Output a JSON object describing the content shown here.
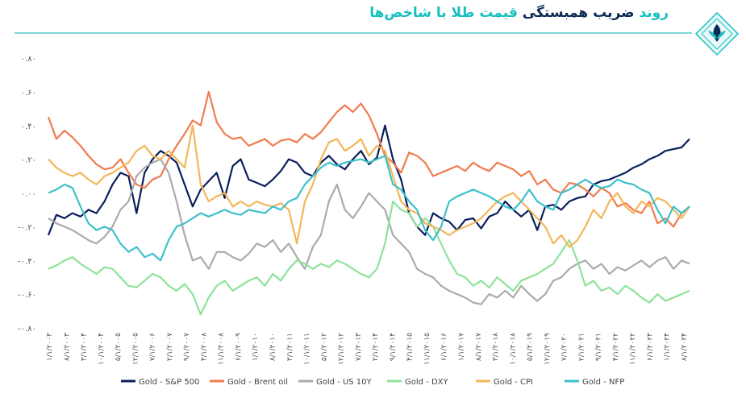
{
  "header": {
    "title_part1": "روند",
    "title_part2": "ضریب همبستگی",
    "title_part3": "قیمت طلا با شاخص‌ها"
  },
  "chart_data": {
    "type": "line",
    "title": "روند ضریب همبستگی قیمت طلا با شاخص‌ها",
    "xlabel": "",
    "ylabel": "",
    "ylim": [
      -0.8,
      0.8
    ],
    "yticks": [
      {
        "value": 0.8,
        "label": "۰.۸۰"
      },
      {
        "value": 0.6,
        "label": "۰.۶۰"
      },
      {
        "value": 0.4,
        "label": "۰.۴۰"
      },
      {
        "value": 0.2,
        "label": "۰.۲۰"
      },
      {
        "value": 0.0,
        "label": "۰.۰۰"
      },
      {
        "value": -0.2,
        "label": "-۰.۲۰"
      },
      {
        "value": -0.4,
        "label": "-۰.۴۰"
      },
      {
        "value": -0.6,
        "label": "-۰.۶۰"
      },
      {
        "value": -0.8,
        "label": "-۰.۸۰"
      }
    ],
    "xticks": [
      "۱/۱/۲۰۰۳",
      "۸/۱/۲۰۰۳",
      "۳/۱/۲۰۰۴",
      "۱۰/۱/۲۰۰۴",
      "۵/۱/۲۰۰۵",
      "۱۲/۱/۲۰۰۵",
      "۷/۱/۲۰۰۶",
      "۲/۱/۲۰۰۷",
      "۹/۱/۲۰۰۷",
      "۴/۱/۲۰۰۸",
      "۱۱/۱/۲۰۰۸",
      "۶/۱/۲۰۰۹",
      "۱/۱/۲۰۱۰",
      "۸/۱/۲۰۱۰",
      "۳/۱/۲۰۱۱",
      "۱۰/۱/۲۰۱۱",
      "۵/۱/۲۰۱۲",
      "۱۲/۱/۲۰۱۲",
      "۷/۱/۲۰۱۳",
      "۲/۱/۲۰۱۴",
      "۹/۱/۲۰۱۴",
      "۴/۱/۲۰۱۵",
      "۱۱/۱/۲۰۱۵",
      "۶/۱/۲۰۱۶",
      "۱/۱/۲۰۱۷",
      "۸/۱/۲۰۱۷",
      "۳/۱/۲۰۱۸",
      "۱۰/۱/۲۰۱۸",
      "۵/۱/۲۰۱۹",
      "۱۲/۱/۲۰۱۹",
      "۷/۱/۲۰۲۰",
      "۲/۱/۲۰۲۱",
      "۹/۱/۲۰۲۱",
      "۴/۱/۲۰۲۲",
      "۱۱/۱/۲۰۲۲",
      "۶/۱/۲۰۲۳",
      "۱/۱/۲۰۲۴",
      "۸/۱/۲۰۲۴"
    ],
    "grid": false,
    "legend_position": "bottom",
    "series": [
      {
        "name": "Gold - S&P 500",
        "color": "#0b1f5c",
        "values": [
          -0.25,
          -0.13,
          -0.15,
          -0.12,
          -0.14,
          -0.1,
          -0.12,
          -0.05,
          0.05,
          0.12,
          0.1,
          -0.12,
          0.12,
          0.2,
          0.25,
          0.22,
          0.18,
          0.05,
          -0.08,
          0.02,
          0.07,
          0.12,
          -0.03,
          0.16,
          0.2,
          0.08,
          0.06,
          0.04,
          0.08,
          0.13,
          0.2,
          0.18,
          0.12,
          0.1,
          0.18,
          0.22,
          0.17,
          0.14,
          0.2,
          0.25,
          0.17,
          0.21,
          0.4,
          0.2,
          0.08,
          -0.12,
          -0.2,
          -0.25,
          -0.12,
          -0.15,
          -0.17,
          -0.22,
          -0.16,
          -0.15,
          -0.21,
          -0.14,
          -0.12,
          -0.05,
          -0.1,
          -0.14,
          -0.1,
          -0.22,
          -0.08,
          -0.07,
          -0.1,
          -0.05,
          -0.03,
          -0.02,
          0.05,
          0.07,
          0.08,
          0.1,
          0.12,
          0.15,
          0.17,
          0.2,
          0.22,
          0.25,
          0.26,
          0.27,
          0.32
        ]
      },
      {
        "name": "Gold - Brent oil",
        "color": "#f07c4f",
        "values": [
          0.45,
          0.32,
          0.37,
          0.33,
          0.28,
          0.22,
          0.17,
          0.14,
          0.15,
          0.2,
          0.12,
          0.05,
          0.03,
          0.08,
          0.1,
          0.2,
          0.28,
          0.35,
          0.43,
          0.4,
          0.6,
          0.42,
          0.35,
          0.32,
          0.33,
          0.28,
          0.3,
          0.32,
          0.28,
          0.31,
          0.32,
          0.3,
          0.35,
          0.32,
          0.36,
          0.42,
          0.48,
          0.52,
          0.48,
          0.53,
          0.46,
          0.35,
          0.22,
          0.18,
          0.12,
          0.24,
          0.22,
          0.18,
          0.1,
          0.12,
          0.14,
          0.16,
          0.13,
          0.18,
          0.15,
          0.13,
          0.18,
          0.16,
          0.14,
          0.1,
          0.13,
          0.05,
          0.08,
          0.02,
          0.0,
          0.06,
          0.05,
          0.02,
          -0.02,
          0.03,
          0.0,
          -0.08,
          -0.06,
          -0.1,
          -0.12,
          -0.05,
          -0.18,
          -0.15,
          -0.2,
          -0.12,
          -0.08
        ]
      },
      {
        "name": "Gold - US 10Y",
        "color": "#ababab",
        "values": [
          -0.15,
          -0.18,
          -0.2,
          -0.22,
          -0.25,
          -0.28,
          -0.3,
          -0.26,
          -0.2,
          -0.1,
          -0.05,
          0.1,
          0.15,
          0.18,
          0.2,
          0.12,
          -0.05,
          -0.25,
          -0.4,
          -0.38,
          -0.45,
          -0.35,
          -0.35,
          -0.38,
          -0.4,
          -0.36,
          -0.3,
          -0.32,
          -0.28,
          -0.35,
          -0.3,
          -0.38,
          -0.45,
          -0.32,
          -0.25,
          -0.05,
          0.05,
          -0.1,
          -0.15,
          -0.08,
          0.0,
          -0.05,
          -0.1,
          -0.25,
          -0.3,
          -0.35,
          -0.45,
          -0.48,
          -0.5,
          -0.55,
          -0.58,
          -0.6,
          -0.62,
          -0.65,
          -0.66,
          -0.6,
          -0.62,
          -0.58,
          -0.62,
          -0.55,
          -0.6,
          -0.64,
          -0.6,
          -0.52,
          -0.5,
          -0.45,
          -0.42,
          -0.4,
          -0.45,
          -0.42,
          -0.48,
          -0.44,
          -0.46,
          -0.43,
          -0.4,
          -0.44,
          -0.4,
          -0.38,
          -0.45,
          -0.4,
          -0.42
        ]
      },
      {
        "name": "Gold - DXY",
        "color": "#8de39a",
        "values": [
          -0.45,
          -0.43,
          -0.4,
          -0.38,
          -0.42,
          -0.45,
          -0.48,
          -0.44,
          -0.45,
          -0.5,
          -0.55,
          -0.56,
          -0.52,
          -0.48,
          -0.5,
          -0.55,
          -0.58,
          -0.54,
          -0.6,
          -0.72,
          -0.62,
          -0.55,
          -0.52,
          -0.58,
          -0.55,
          -0.52,
          -0.5,
          -0.55,
          -0.48,
          -0.52,
          -0.45,
          -0.4,
          -0.42,
          -0.45,
          -0.42,
          -0.44,
          -0.4,
          -0.42,
          -0.45,
          -0.48,
          -0.5,
          -0.45,
          -0.3,
          -0.05,
          -0.1,
          -0.12,
          -0.2,
          -0.15,
          -0.2,
          -0.3,
          -0.4,
          -0.48,
          -0.5,
          -0.55,
          -0.52,
          -0.56,
          -0.5,
          -0.54,
          -0.58,
          -0.52,
          -0.5,
          -0.48,
          -0.45,
          -0.42,
          -0.35,
          -0.28,
          -0.4,
          -0.55,
          -0.52,
          -0.58,
          -0.56,
          -0.6,
          -0.55,
          -0.58,
          -0.62,
          -0.65,
          -0.6,
          -0.64,
          -0.62,
          -0.6,
          -0.58
        ]
      },
      {
        "name": "Gold - CPI",
        "color": "#f2b75a",
        "values": [
          0.2,
          0.15,
          0.12,
          0.1,
          0.12,
          0.08,
          0.05,
          0.1,
          0.12,
          0.15,
          0.18,
          0.25,
          0.28,
          0.22,
          0.2,
          0.25,
          0.2,
          0.15,
          0.4,
          0.05,
          -0.05,
          -0.02,
          0.0,
          -0.08,
          -0.05,
          -0.08,
          -0.05,
          -0.07,
          -0.08,
          -0.06,
          -0.1,
          -0.3,
          -0.05,
          0.05,
          0.2,
          0.3,
          0.32,
          0.25,
          0.28,
          0.32,
          0.22,
          0.28,
          0.25,
          0.1,
          -0.05,
          -0.1,
          -0.12,
          -0.18,
          -0.2,
          -0.22,
          -0.25,
          -0.22,
          -0.2,
          -0.18,
          -0.15,
          -0.1,
          -0.05,
          -0.02,
          0.0,
          -0.05,
          -0.1,
          -0.15,
          -0.2,
          -0.3,
          -0.25,
          -0.32,
          -0.28,
          -0.2,
          -0.1,
          -0.15,
          -0.05,
          0.0,
          -0.08,
          -0.12,
          -0.05,
          -0.08,
          -0.03,
          -0.05,
          -0.1,
          -0.15,
          -0.08
        ]
      },
      {
        "name": "Gold - NFP",
        "color": "#3ec1ca",
        "values": [
          0.0,
          0.02,
          0.05,
          0.03,
          -0.08,
          -0.18,
          -0.22,
          -0.2,
          -0.22,
          -0.3,
          -0.35,
          -0.32,
          -0.38,
          -0.36,
          -0.4,
          -0.28,
          -0.2,
          -0.18,
          -0.15,
          -0.12,
          -0.14,
          -0.12,
          -0.1,
          -0.12,
          -0.13,
          -0.1,
          -0.11,
          -0.12,
          -0.08,
          -0.1,
          -0.05,
          -0.03,
          0.05,
          0.1,
          0.15,
          0.18,
          0.16,
          0.18,
          0.19,
          0.2,
          0.18,
          0.2,
          0.22,
          0.05,
          0.02,
          -0.05,
          -0.1,
          -0.22,
          -0.28,
          -0.2,
          -0.05,
          -0.02,
          0.0,
          0.02,
          0.0,
          -0.02,
          -0.05,
          -0.08,
          -0.1,
          -0.05,
          0.02,
          -0.05,
          -0.08,
          -0.1,
          0.0,
          0.02,
          0.05,
          0.08,
          0.05,
          0.03,
          0.04,
          0.08,
          0.06,
          0.05,
          0.02,
          0.0,
          -0.1,
          -0.18,
          -0.08,
          -0.12,
          -0.08
        ]
      }
    ]
  }
}
